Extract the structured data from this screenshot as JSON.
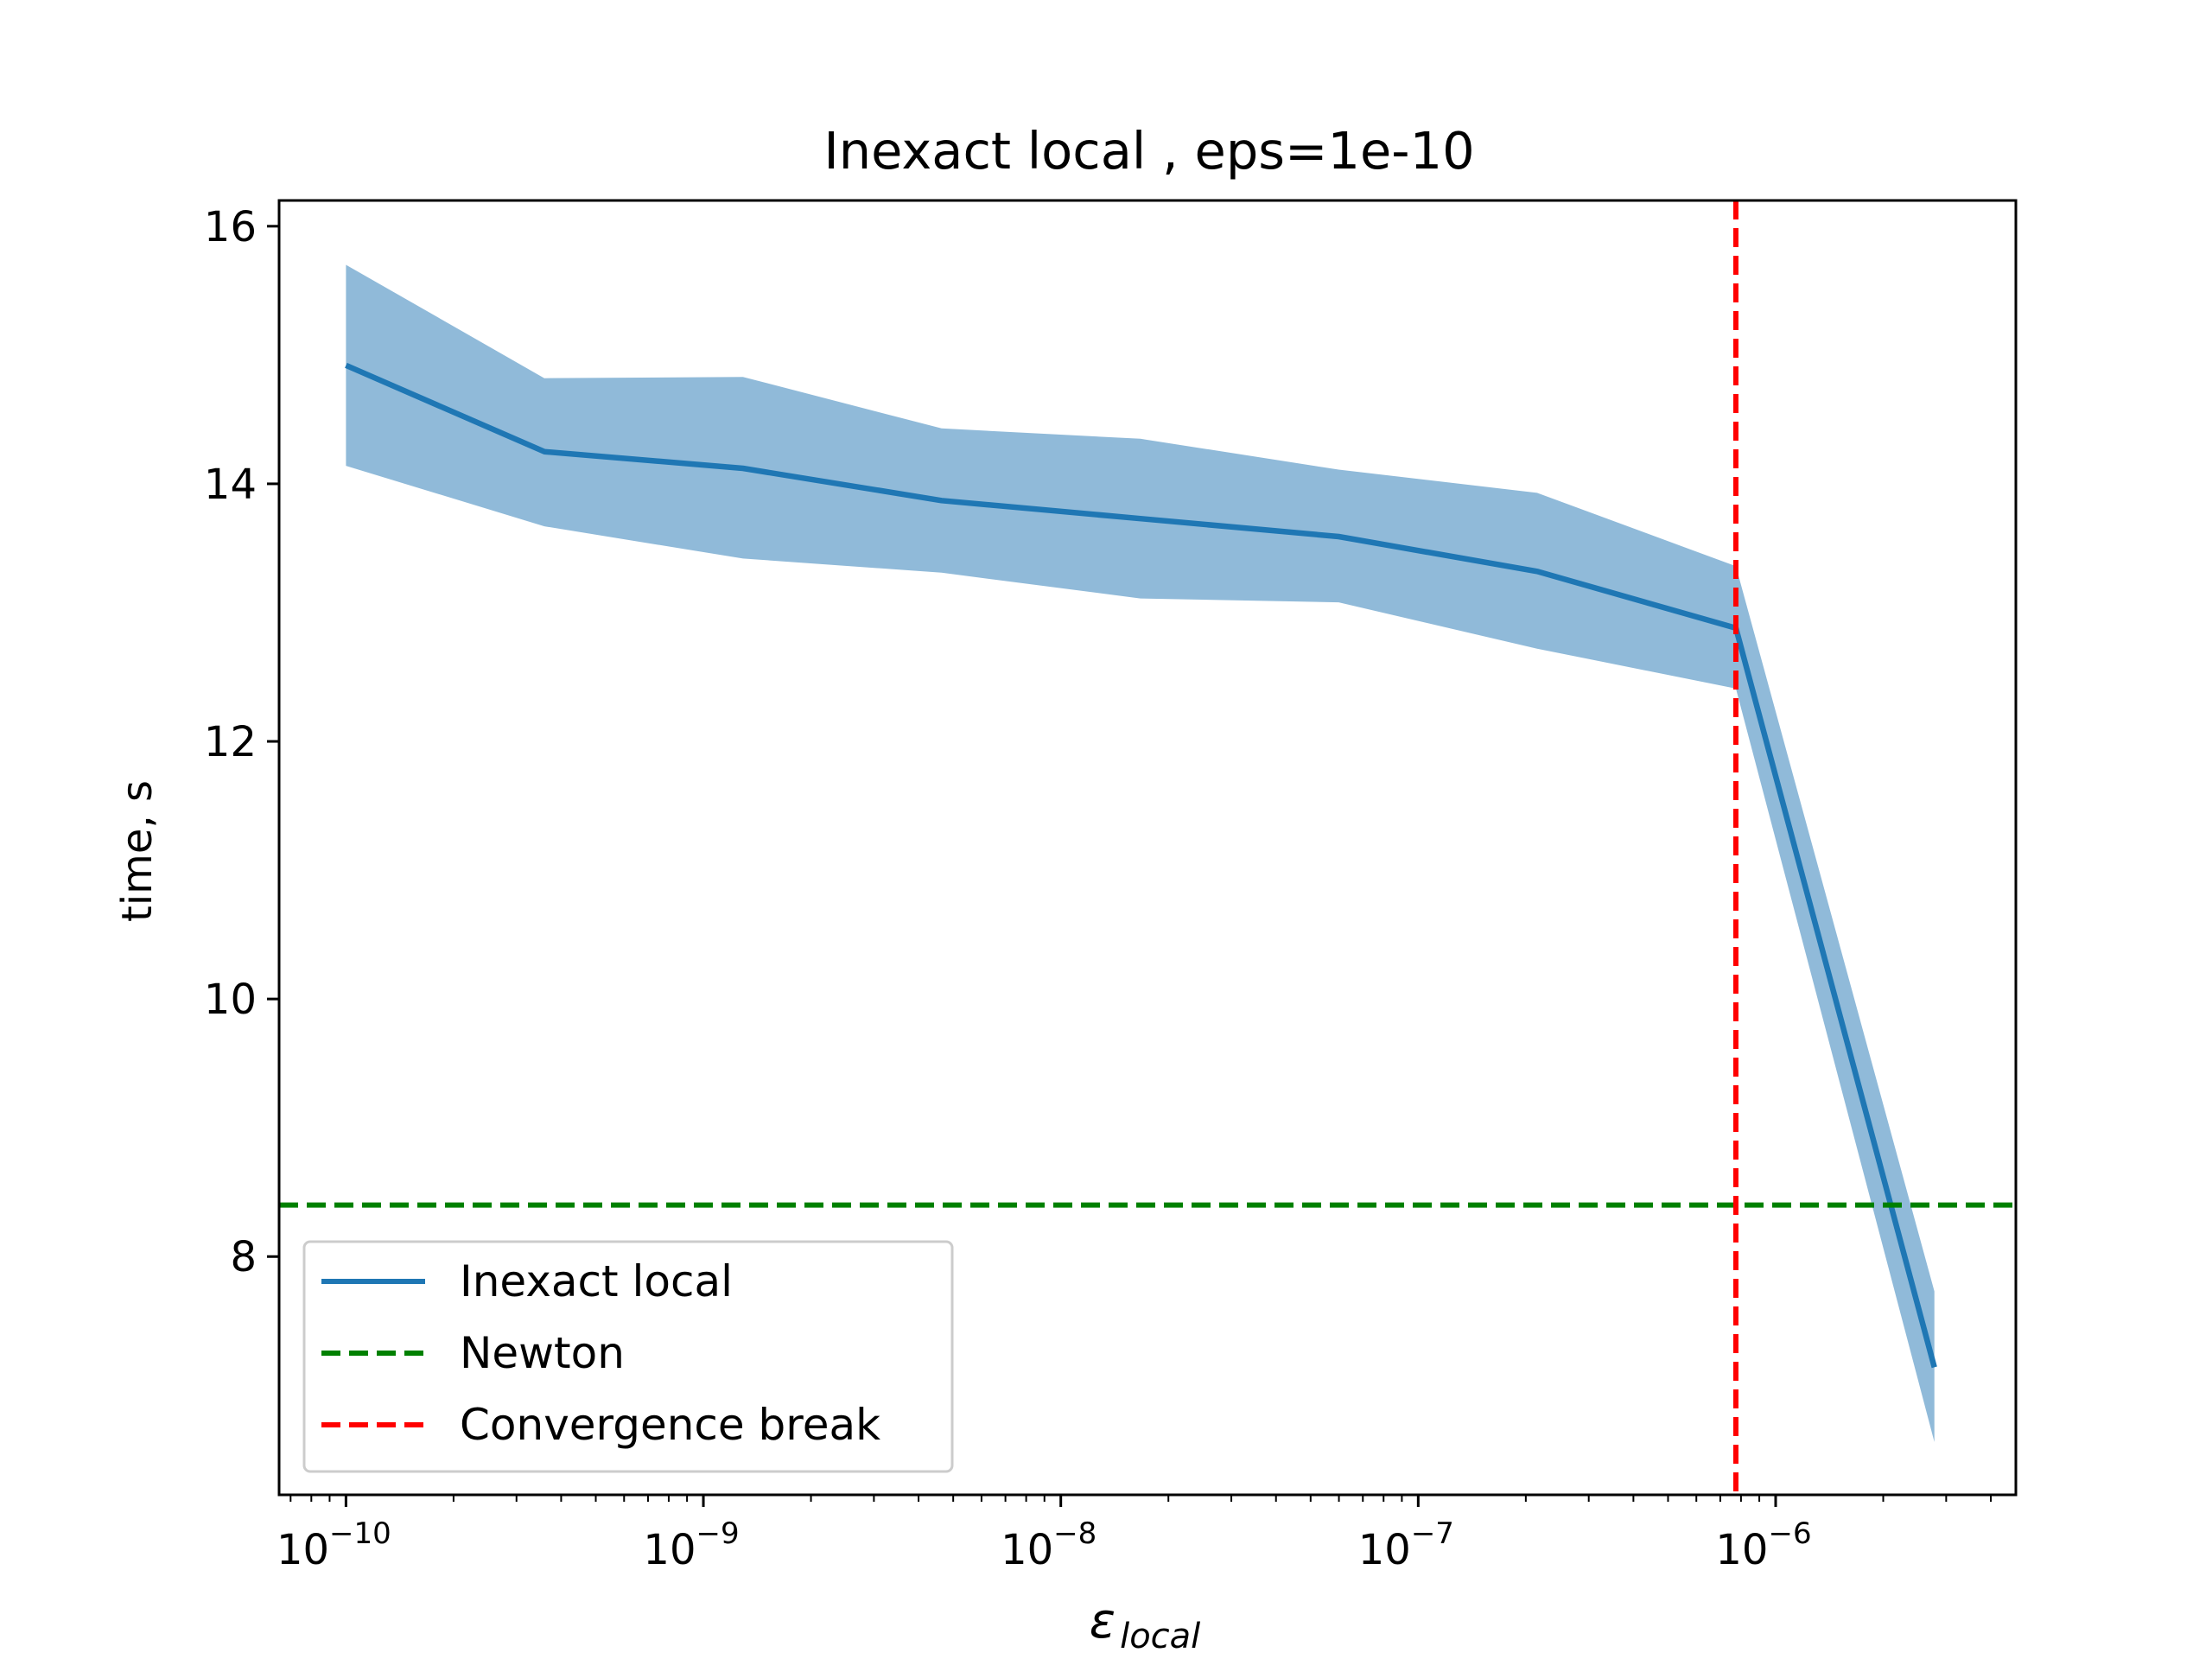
{
  "chart_data": {
    "type": "line",
    "title": "Inexact local , eps=1e-10",
    "xlabel_symbol": "ε",
    "xlabel_subscript": "local",
    "ylabel": "time, s",
    "xscale": "log",
    "xlim": [
      6.5e-11,
      4.7e-06
    ],
    "ylim": [
      6.15,
      16.2
    ],
    "xticks": [
      {
        "value": 1e-10,
        "base": "10",
        "exp": "−10"
      },
      {
        "value": 1e-09,
        "base": "10",
        "exp": "−9"
      },
      {
        "value": 1e-08,
        "base": "10",
        "exp": "−8"
      },
      {
        "value": 1e-07,
        "base": "10",
        "exp": "−7"
      },
      {
        "value": 1e-06,
        "base": "10",
        "exp": "−6"
      }
    ],
    "yticks": [
      {
        "value": 8,
        "label": "8"
      },
      {
        "value": 10,
        "label": "10"
      },
      {
        "value": 12,
        "label": "12"
      },
      {
        "value": 14,
        "label": "14"
      },
      {
        "value": 16,
        "label": "16"
      }
    ],
    "series": [
      {
        "name": "Inexact local",
        "color": "#1f77b4",
        "x": [
          1e-10,
          3.59e-10,
          1.29e-09,
          4.64e-09,
          1.67e-08,
          5.99e-08,
          2.15e-07,
          7.74e-07,
          2.78e-06
        ],
        "y": [
          14.92,
          14.25,
          14.12,
          13.87,
          13.73,
          13.59,
          13.32,
          12.88,
          7.14
        ],
        "lower": [
          14.14,
          13.67,
          13.42,
          13.31,
          13.11,
          13.08,
          12.72,
          12.41,
          6.56
        ],
        "upper": [
          15.7,
          14.82,
          14.83,
          14.43,
          14.35,
          14.11,
          13.93,
          13.36,
          7.73
        ],
        "band_color": "#90bad9"
      }
    ],
    "hlines": [
      {
        "name": "Newton",
        "y": 8.4,
        "color": "#008000",
        "style": "dashed"
      }
    ],
    "vlines": [
      {
        "name": "Convergence break",
        "x": 7.74e-07,
        "color": "#ff0000",
        "style": "dashed"
      }
    ],
    "legend": {
      "position": "lower-left",
      "entries": [
        {
          "label": "Inexact local",
          "color": "#1f77b4",
          "style": "solid"
        },
        {
          "label": "Newton",
          "color": "#008000",
          "style": "dashed"
        },
        {
          "label": "Convergence break",
          "color": "#ff0000",
          "style": "dashed"
        }
      ]
    },
    "grid": false
  }
}
